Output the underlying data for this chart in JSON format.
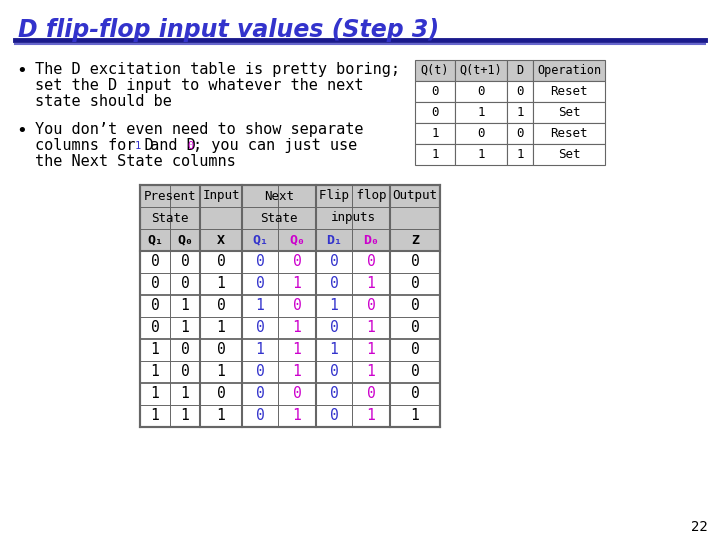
{
  "title": "D flip-flop input values (Step 3)",
  "title_color": "#3333cc",
  "bg_color": "#ffffff",
  "bullet1_line1": "The D excitation table is pretty boring;",
  "bullet1_line2": "set the D input to whatever the next",
  "bullet1_line3": "state should be",
  "bullet2_line1": "You don’t even need to show separate",
  "bullet2_line2_pre": "columns for D",
  "bullet2_line2_mid": " and D",
  "bullet2_line2_post": "; you can just use",
  "bullet2_line3": "the Next State columns",
  "small_table_headers": [
    "Q(t)",
    "Q(t+1)",
    "D",
    "Operation"
  ],
  "small_table_data": [
    [
      "0",
      "0",
      "0",
      "Reset"
    ],
    [
      "0",
      "1",
      "1",
      "Set"
    ],
    [
      "1",
      "0",
      "0",
      "Reset"
    ],
    [
      "1",
      "1",
      "1",
      "Set"
    ]
  ],
  "big_table_data": [
    [
      "0",
      "0",
      "0",
      "0",
      "0",
      "0",
      "0",
      "0"
    ],
    [
      "0",
      "0",
      "1",
      "0",
      "1",
      "0",
      "1",
      "0"
    ],
    [
      "0",
      "1",
      "0",
      "1",
      "0",
      "1",
      "0",
      "0"
    ],
    [
      "0",
      "1",
      "1",
      "0",
      "1",
      "0",
      "1",
      "0"
    ],
    [
      "1",
      "0",
      "0",
      "1",
      "1",
      "1",
      "1",
      "0"
    ],
    [
      "1",
      "0",
      "1",
      "0",
      "1",
      "0",
      "1",
      "0"
    ],
    [
      "1",
      "1",
      "0",
      "0",
      "0",
      "0",
      "0",
      "0"
    ],
    [
      "1",
      "1",
      "1",
      "0",
      "1",
      "0",
      "1",
      "1"
    ]
  ],
  "page_number": "22",
  "blue_color": "#3333cc",
  "magenta_color": "#cc00cc",
  "black_color": "#000000",
  "gray_header": "#c8c8c8",
  "table_border": "#666666",
  "line_color": "#3333cc",
  "font_size_title": 17,
  "font_size_bullet": 11,
  "font_size_table_hdr": 9,
  "font_size_table_data": 10,
  "font_size_small_hdr": 8.5,
  "font_size_small_data": 9
}
